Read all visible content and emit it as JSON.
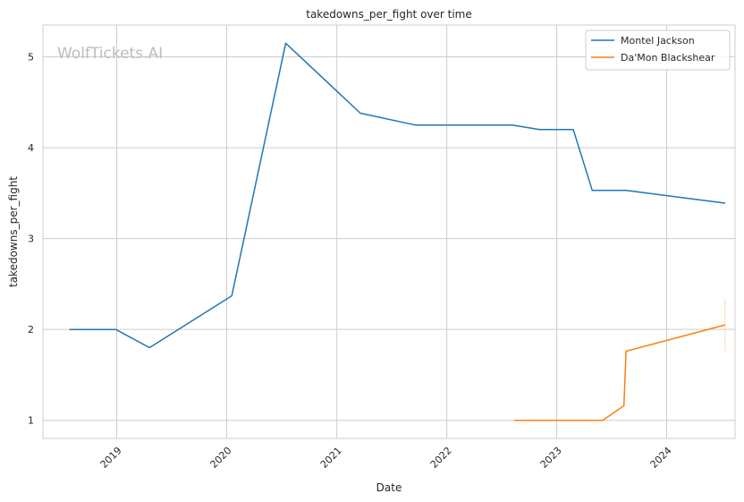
{
  "chart_data": {
    "type": "line",
    "title": "takedowns_per_fight over time",
    "xlabel": "Date",
    "ylabel": "takedowns_per_fight",
    "watermark": "WolfTickets.AI",
    "x_ticks": [
      "2019",
      "2020",
      "2021",
      "2022",
      "2023",
      "2024"
    ],
    "y_ticks": [
      1,
      2,
      3,
      4,
      5
    ],
    "xlim": [
      "2018-05-01",
      "2024-08-15"
    ],
    "ylim": [
      0.8,
      5.35
    ],
    "grid": true,
    "legend_position": "top-right",
    "series": [
      {
        "name": "Montel Jackson",
        "color": "#1f77b4",
        "points": [
          [
            "2018-07-28",
            2.0
          ],
          [
            "2018-12-29",
            2.0
          ],
          [
            "2019-04-20",
            1.8
          ],
          [
            "2020-01-18",
            2.37
          ],
          [
            "2020-07-15",
            5.15
          ],
          [
            "2021-03-20",
            4.38
          ],
          [
            "2021-09-18",
            4.25
          ],
          [
            "2022-08-06",
            4.25
          ],
          [
            "2022-11-05",
            4.2
          ],
          [
            "2023-02-25",
            4.2
          ],
          [
            "2023-04-29",
            3.53
          ],
          [
            "2023-08-19",
            3.53
          ],
          [
            "2024-07-13",
            3.39
          ]
        ]
      },
      {
        "name": "Da'Mon Blackshear",
        "color": "#ff7f0e",
        "points": [
          [
            "2022-08-13",
            1.0
          ],
          [
            "2023-06-03",
            1.0
          ],
          [
            "2023-08-12",
            1.16
          ],
          [
            "2023-08-19",
            1.76
          ],
          [
            "2024-07-13",
            2.05
          ]
        ],
        "error_bar": {
          "x": "2024-07-13",
          "low": 1.76,
          "high": 2.34
        }
      }
    ]
  }
}
